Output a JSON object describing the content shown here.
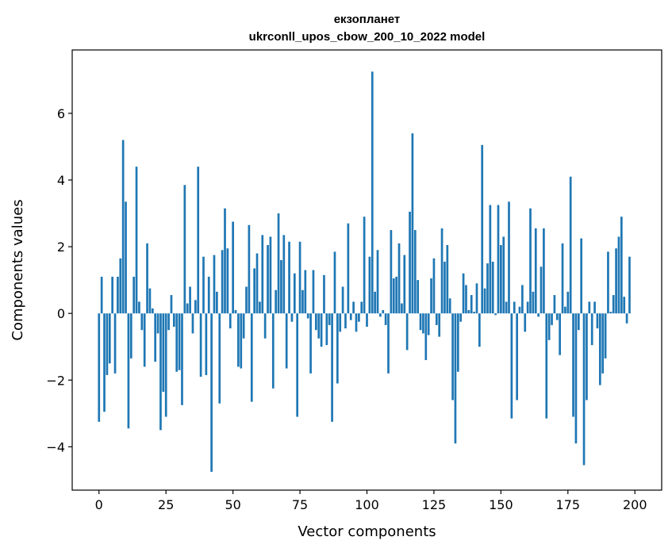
{
  "chart_data": {
    "type": "bar",
    "title_line1": "екзопланет",
    "title_line2": "ukrconll_upos_cbow_200_10_2022 model",
    "xlabel": "Vector components",
    "ylabel": "Components values",
    "xlim": [
      -10,
      210
    ],
    "ylim": [
      -5.3,
      7.9
    ],
    "xticks": [
      0,
      25,
      50,
      75,
      100,
      125,
      150,
      175,
      200
    ],
    "yticks": [
      -4,
      -2,
      0,
      2,
      4,
      6
    ],
    "ytick_labels": [
      "−4",
      "−2",
      "0",
      "2",
      "4",
      "6"
    ],
    "bar_color": "#1f77b4",
    "grid": false,
    "values": [
      -3.25,
      1.1,
      -2.95,
      -1.85,
      -1.5,
      1.1,
      -1.8,
      1.1,
      1.65,
      5.2,
      3.35,
      -3.45,
      -1.35,
      1.1,
      4.4,
      0.35,
      -0.5,
      -1.6,
      2.1,
      0.75,
      0.15,
      -1.45,
      -0.6,
      -3.5,
      -2.35,
      -3.1,
      -0.5,
      0.55,
      -0.4,
      -1.75,
      -1.7,
      -2.75,
      3.85,
      0.3,
      0.8,
      -0.6,
      0.4,
      4.4,
      -1.9,
      1.7,
      -1.85,
      1.1,
      -4.75,
      1.75,
      0.65,
      -2.7,
      1.9,
      3.15,
      1.95,
      -0.45,
      2.75,
      0.1,
      -1.6,
      -1.65,
      -0.75,
      0.8,
      2.65,
      -2.65,
      1.35,
      1.8,
      0.35,
      2.35,
      -0.75,
      2.05,
      2.3,
      -2.25,
      0.7,
      3.0,
      1.6,
      2.35,
      -1.65,
      2.15,
      -0.25,
      1.2,
      -3.1,
      2.15,
      0.7,
      1.3,
      -0.15,
      -1.8,
      1.3,
      -0.5,
      -0.75,
      -1.0,
      1.15,
      -0.95,
      -0.35,
      -3.25,
      1.85,
      -2.1,
      -0.55,
      0.8,
      -0.45,
      2.7,
      -0.2,
      0.35,
      -0.55,
      -0.25,
      0.35,
      2.9,
      -0.4,
      1.7,
      7.25,
      0.65,
      1.9,
      -0.1,
      0.1,
      -0.35,
      -1.8,
      2.5,
      1.05,
      1.1,
      2.1,
      0.3,
      1.75,
      -1.1,
      3.05,
      5.4,
      2.5,
      1.0,
      -0.5,
      -0.6,
      -1.4,
      -0.65,
      1.05,
      1.65,
      -0.35,
      -0.7,
      2.55,
      1.55,
      2.05,
      0.45,
      -2.6,
      -3.9,
      -1.75,
      -0.25,
      1.2,
      0.85,
      0.1,
      0.55,
      0.05,
      0.9,
      -1.0,
      5.05,
      0.75,
      1.5,
      3.25,
      1.55,
      -0.05,
      3.25,
      2.05,
      2.3,
      0.35,
      3.35,
      -3.15,
      0.35,
      -2.6,
      0.2,
      0.85,
      -0.55,
      0.35,
      3.15,
      0.65,
      2.55,
      -0.1,
      1.4,
      2.55,
      -3.15,
      -0.8,
      -0.35,
      0.55,
      -0.2,
      -1.25,
      2.1,
      0.2,
      0.65,
      4.1,
      -3.1,
      -3.9,
      -0.5,
      2.25,
      -4.55,
      -2.6,
      0.35,
      -0.95,
      0.35,
      -0.45,
      -2.15,
      -1.8,
      -1.35,
      1.85,
      0.05,
      0.55,
      1.95,
      2.3,
      2.9,
      0.5,
      -0.3,
      1.7
    ]
  }
}
